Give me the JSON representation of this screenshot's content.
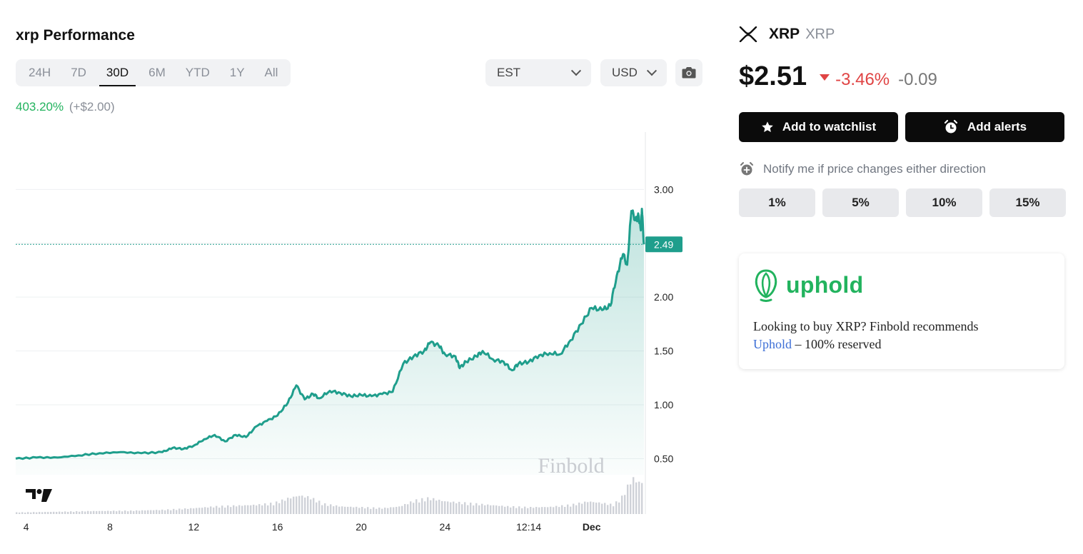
{
  "performance": {
    "title": "xrp Performance",
    "ranges": [
      {
        "label": "24H",
        "active": false
      },
      {
        "label": "7D",
        "active": false
      },
      {
        "label": "30D",
        "active": true
      },
      {
        "label": "6M",
        "active": false
      },
      {
        "label": "YTD",
        "active": false
      },
      {
        "label": "1Y",
        "active": false
      },
      {
        "label": "All",
        "active": false
      }
    ],
    "timezone": "EST",
    "currency": "USD",
    "change_pct": "403.20%",
    "change_abs": "(+$2.00)"
  },
  "coin": {
    "name": "XRP",
    "symbol": "XRP",
    "price": "$2.51",
    "change_pct": "-3.46%",
    "change_abs": "-0.09",
    "watchlist_label": "Add to watchlist",
    "alerts_label": "Add alerts",
    "notify_text": "Notify me if price changes either direction",
    "alert_options": [
      "1%",
      "5%",
      "10%",
      "15%"
    ]
  },
  "promo": {
    "brand": "uphold",
    "text_before": "Looking to buy XRP? Finbold recommends",
    "link_text": "Uphold",
    "text_after": "– 100% reserved"
  },
  "colors": {
    "line": "#1f9e8c",
    "positive": "#22b35e",
    "negative": "#e04444",
    "volume": "#cfd2d8"
  },
  "chart_data": {
    "type": "area",
    "watermark": "Finbold",
    "x_tick_labels": [
      "4",
      "8",
      "12",
      "16",
      "20",
      "24",
      "12:14",
      "Dec"
    ],
    "y_ticks": [
      0.5,
      1.0,
      1.5,
      2.0,
      2.5,
      3.0
    ],
    "y_tick_labels": [
      "0.50",
      "1.00",
      "1.50",
      "2.00",
      "",
      "3.00"
    ],
    "ylim": [
      0.35,
      3.48
    ],
    "last_price_label": "2.49",
    "last_price": 2.49,
    "x_domain": [
      3.5,
      33.5
    ],
    "x_tick_positions": [
      4,
      8,
      12,
      16,
      20,
      24,
      28,
      31
    ],
    "price_points": [
      [
        3.5,
        0.5
      ],
      [
        4.5,
        0.51
      ],
      [
        5.5,
        0.51
      ],
      [
        6.5,
        0.53
      ],
      [
        7.5,
        0.55
      ],
      [
        8.5,
        0.56
      ],
      [
        9.5,
        0.55
      ],
      [
        10.5,
        0.56
      ],
      [
        11,
        0.6
      ],
      [
        11.5,
        0.59
      ],
      [
        12,
        0.62
      ],
      [
        12.5,
        0.68
      ],
      [
        13,
        0.72
      ],
      [
        13.5,
        0.66
      ],
      [
        14,
        0.72
      ],
      [
        14.5,
        0.7
      ],
      [
        15,
        0.8
      ],
      [
        15.5,
        0.85
      ],
      [
        16,
        0.9
      ],
      [
        16.5,
        1.02
      ],
      [
        16.9,
        1.18
      ],
      [
        17.3,
        1.05
      ],
      [
        17.7,
        1.1
      ],
      [
        18,
        1.06
      ],
      [
        18.5,
        1.13
      ],
      [
        19,
        1.11
      ],
      [
        19.5,
        1.08
      ],
      [
        20,
        1.09
      ],
      [
        20.5,
        1.08
      ],
      [
        21,
        1.1
      ],
      [
        21.5,
        1.12
      ],
      [
        22,
        1.38
      ],
      [
        22.5,
        1.45
      ],
      [
        23,
        1.5
      ],
      [
        23.3,
        1.58
      ],
      [
        23.7,
        1.55
      ],
      [
        24,
        1.47
      ],
      [
        24.5,
        1.45
      ],
      [
        24.7,
        1.34
      ],
      [
        25,
        1.4
      ],
      [
        25.5,
        1.45
      ],
      [
        25.8,
        1.5
      ],
      [
        26.3,
        1.42
      ],
      [
        26.8,
        1.4
      ],
      [
        27.2,
        1.32
      ],
      [
        27.5,
        1.38
      ],
      [
        28,
        1.4
      ],
      [
        28.5,
        1.46
      ],
      [
        29,
        1.48
      ],
      [
        29.5,
        1.47
      ],
      [
        30,
        1.6
      ],
      [
        30.5,
        1.75
      ],
      [
        31,
        1.9
      ],
      [
        31.5,
        1.88
      ],
      [
        31.9,
        1.92
      ],
      [
        32.2,
        2.2
      ],
      [
        32.5,
        2.4
      ],
      [
        32.7,
        2.3
      ],
      [
        32.9,
        2.8
      ],
      [
        33.1,
        2.72
      ],
      [
        33.25,
        2.75
      ],
      [
        33.35,
        2.62
      ],
      [
        33.4,
        2.82
      ],
      [
        33.5,
        2.49
      ]
    ],
    "volume_points": [
      [
        3.5,
        0.04
      ],
      [
        5,
        0.05
      ],
      [
        7,
        0.07
      ],
      [
        9,
        0.08
      ],
      [
        10.5,
        0.1
      ],
      [
        12,
        0.14
      ],
      [
        13,
        0.18
      ],
      [
        14,
        0.2
      ],
      [
        15,
        0.22
      ],
      [
        15.8,
        0.26
      ],
      [
        16.5,
        0.38
      ],
      [
        17,
        0.44
      ],
      [
        17.5,
        0.4
      ],
      [
        18.2,
        0.24
      ],
      [
        19,
        0.18
      ],
      [
        20,
        0.16
      ],
      [
        21,
        0.14
      ],
      [
        21.8,
        0.18
      ],
      [
        22.5,
        0.32
      ],
      [
        23.2,
        0.38
      ],
      [
        24,
        0.3
      ],
      [
        25,
        0.26
      ],
      [
        26,
        0.22
      ],
      [
        27,
        0.18
      ],
      [
        28,
        0.16
      ],
      [
        29,
        0.17
      ],
      [
        30,
        0.22
      ],
      [
        30.8,
        0.3
      ],
      [
        31.5,
        0.26
      ],
      [
        32,
        0.22
      ],
      [
        32.4,
        0.4
      ],
      [
        32.9,
        0.86
      ],
      [
        33.2,
        0.76
      ],
      [
        33.5,
        0.74
      ]
    ]
  }
}
